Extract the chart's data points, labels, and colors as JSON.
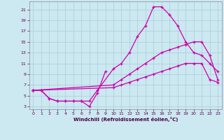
{
  "xlabel": "Windchill (Refroidissement éolien,°C)",
  "background_color": "#cce8f0",
  "grid_color": "#aaccdd",
  "line_color": "#cc00aa",
  "xlim": [
    -0.5,
    23.5
  ],
  "ylim": [
    2.5,
    22.5
  ],
  "yticks": [
    3,
    5,
    7,
    9,
    11,
    13,
    15,
    17,
    19,
    21
  ],
  "xticks": [
    0,
    1,
    2,
    3,
    4,
    5,
    6,
    7,
    8,
    9,
    10,
    11,
    12,
    13,
    14,
    15,
    16,
    17,
    18,
    19,
    20,
    21,
    22,
    23
  ],
  "series": [
    {
      "x": [
        0,
        1,
        2,
        3,
        4,
        5,
        6,
        7,
        8,
        9
      ],
      "y": [
        6,
        6,
        4.5,
        4,
        4,
        4,
        4,
        3,
        5.5,
        9.5
      ]
    },
    {
      "x": [
        0,
        1,
        2,
        3,
        4,
        5,
        6,
        7,
        8,
        10,
        11,
        12,
        13,
        14,
        15,
        16,
        17,
        18,
        19,
        20,
        21,
        22,
        23
      ],
      "y": [
        6,
        6,
        4.5,
        4,
        4,
        4,
        4,
        4,
        6,
        10,
        11,
        13,
        16,
        18,
        21.5,
        21.5,
        20,
        18,
        15,
        13,
        12.5,
        11,
        9.5
      ]
    },
    {
      "x": [
        0,
        10,
        11,
        12,
        13,
        14,
        15,
        16,
        17,
        18,
        19,
        20,
        21,
        22,
        23
      ],
      "y": [
        6,
        7,
        8,
        9,
        10,
        11,
        12,
        13,
        13.5,
        14,
        14.5,
        15,
        15,
        12.5,
        8
      ]
    },
    {
      "x": [
        0,
        10,
        11,
        12,
        13,
        14,
        15,
        16,
        17,
        18,
        19,
        20,
        21,
        22,
        23
      ],
      "y": [
        6,
        6.5,
        7,
        7.5,
        8,
        8.5,
        9,
        9.5,
        10,
        10.5,
        11,
        11,
        11,
        8,
        7.5
      ]
    }
  ]
}
